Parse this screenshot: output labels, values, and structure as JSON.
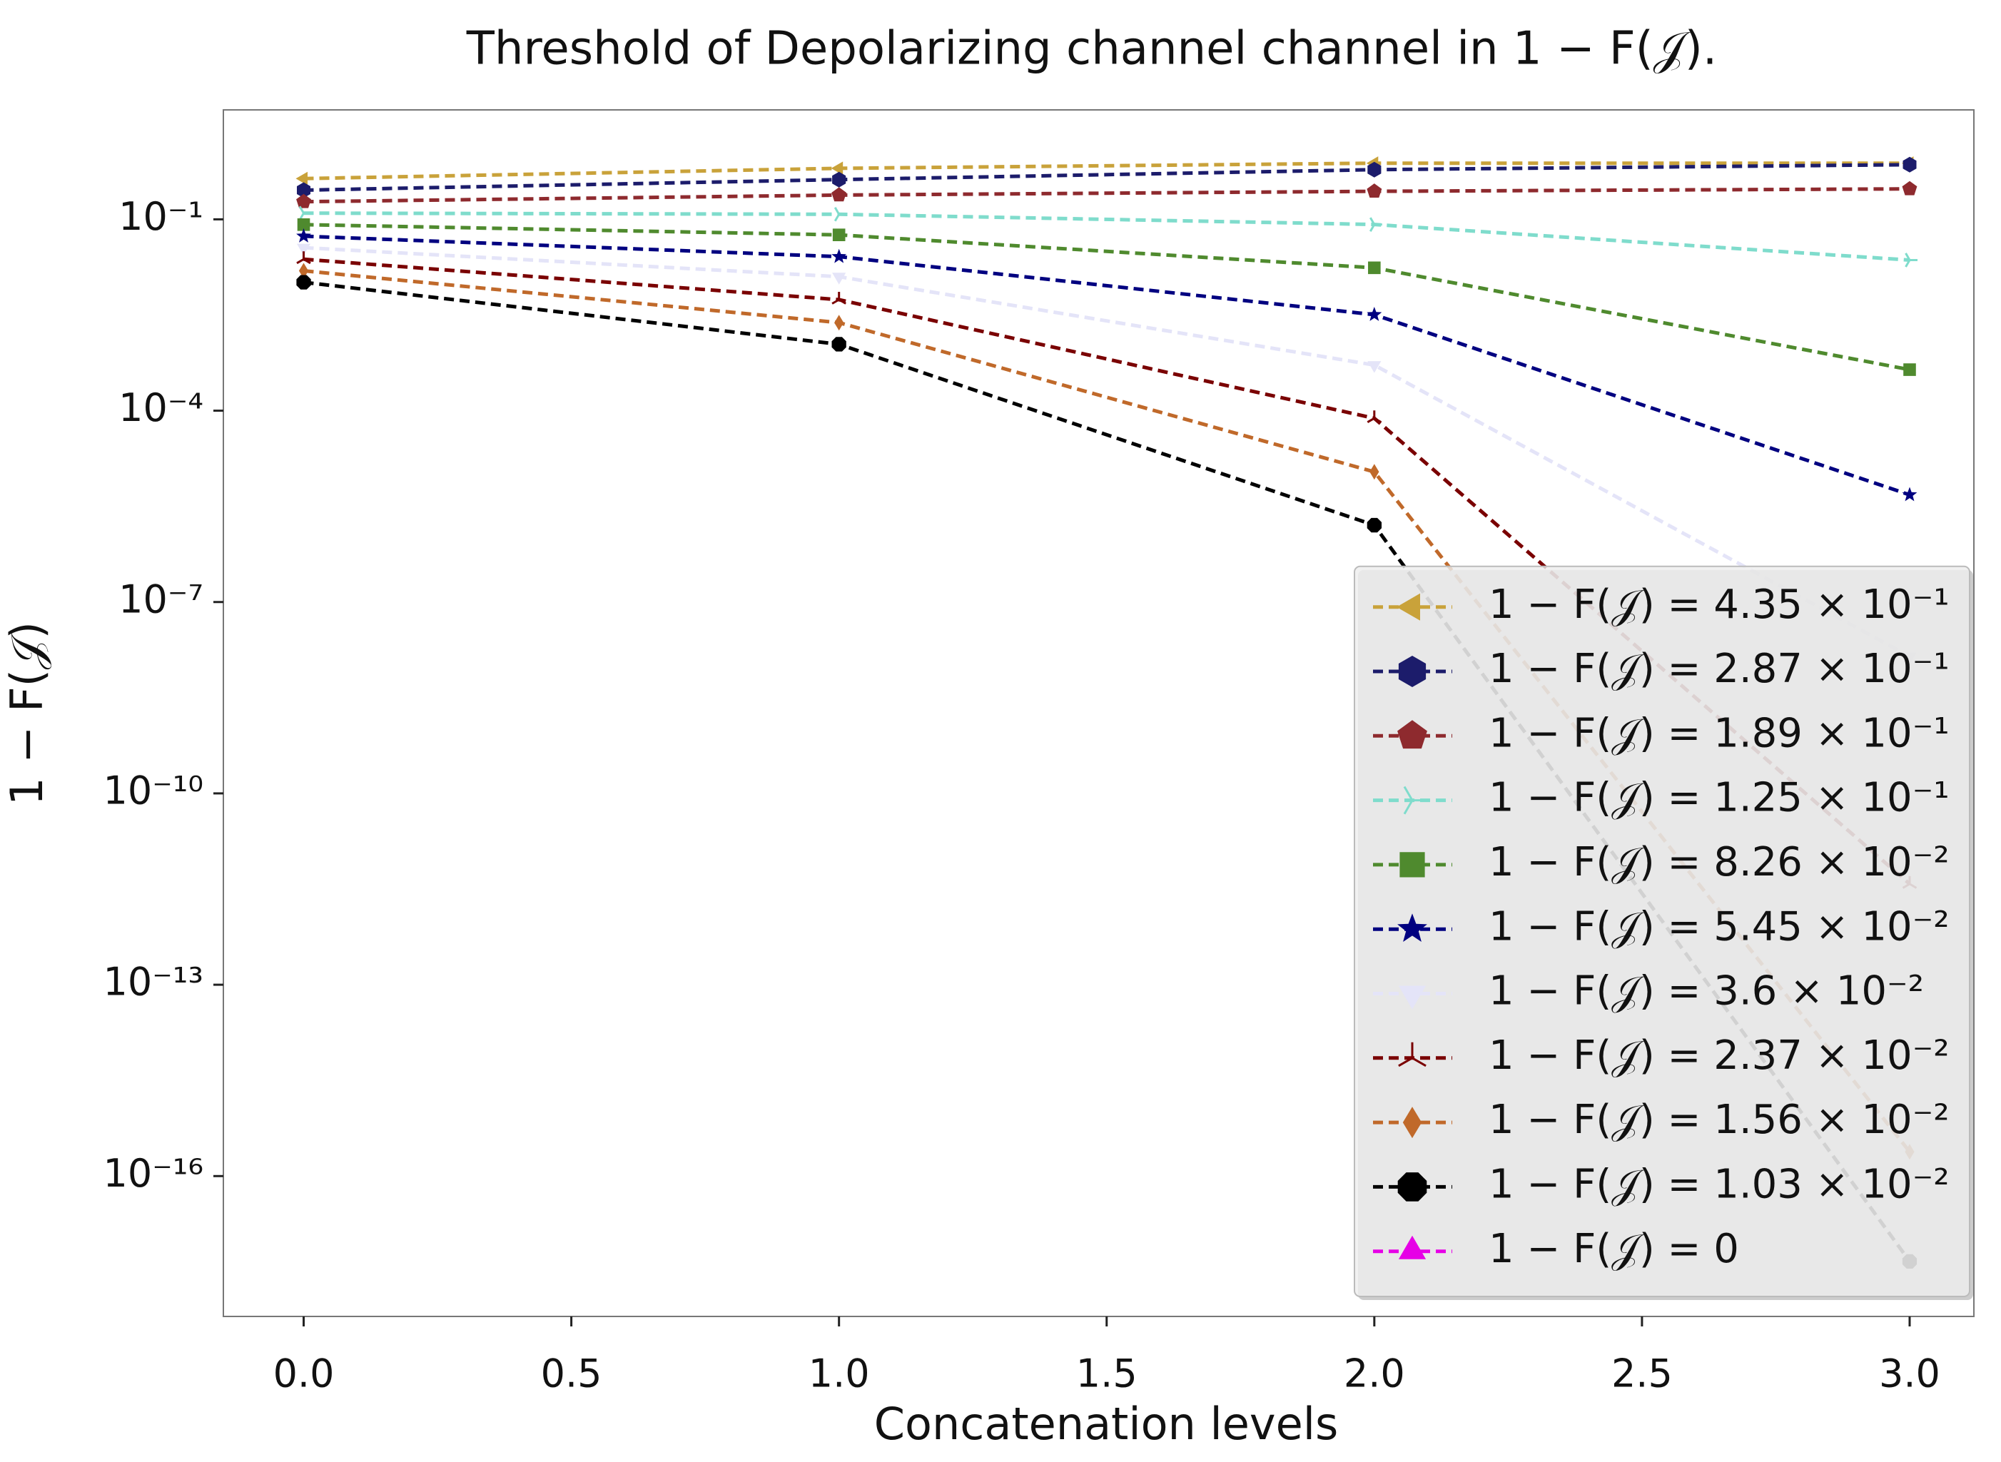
{
  "chart_data": {
    "type": "line",
    "title": "Threshold of Depolarizing channel channel in 1 − F(𝒥).",
    "x_label": "Concatenation levels",
    "y_label": "1 − F(𝒥)",
    "x": [
      0,
      1,
      2,
      3
    ],
    "xlim": [
      -0.15,
      3.12
    ],
    "xticks": [
      {
        "value": 0,
        "label": "0.0"
      },
      {
        "value": 0.5,
        "label": "0.5"
      },
      {
        "value": 1,
        "label": "1.0"
      },
      {
        "value": 1.5,
        "label": "1.5"
      },
      {
        "value": 2,
        "label": "2.0"
      },
      {
        "value": 2.5,
        "label": "2.5"
      },
      {
        "value": 3,
        "label": "3.0"
      }
    ],
    "y_scale": "log",
    "ylim": [
      6.3e-19,
      5.2
    ],
    "yticks": [
      {
        "value": 0.1,
        "label": "10⁻¹"
      },
      {
        "value": 0.0001,
        "label": "10⁻⁴"
      },
      {
        "value": 1e-07,
        "label": "10⁻⁷"
      },
      {
        "value": 1e-10,
        "label": "10⁻¹⁰"
      },
      {
        "value": 1e-13,
        "label": "10⁻¹³"
      },
      {
        "value": 1e-16,
        "label": "10⁻¹⁶"
      }
    ],
    "grid": false,
    "legend_position": "lower right",
    "series": [
      {
        "name": "1 − F(𝒥) = 4.35 × 10⁻¹",
        "color": "#c9a23a",
        "marker": "triangle-left",
        "values": [
          0.435,
          0.63,
          0.76,
          0.76
        ]
      },
      {
        "name": "1 − F(𝒥) = 2.87 × 10⁻¹",
        "color": "#1c1c6b",
        "marker": "hexagon",
        "values": [
          0.287,
          0.42,
          0.6,
          0.72
        ]
      },
      {
        "name": "1 − F(𝒥) = 1.89 × 10⁻¹",
        "color": "#8e2a2e",
        "marker": "pentagon",
        "values": [
          0.189,
          0.24,
          0.275,
          0.3
        ]
      },
      {
        "name": "1 − F(𝒥) = 1.25 × 10⁻¹",
        "color": "#7fdccc",
        "marker": "tri-left",
        "values": [
          0.125,
          0.12,
          0.083,
          0.023
        ]
      },
      {
        "name": "1 − F(𝒥) = 8.26 × 10⁻²",
        "color": "#4f8a2e",
        "marker": "square",
        "values": [
          0.0826,
          0.057,
          0.0174,
          0.00044
        ]
      },
      {
        "name": "1 − F(𝒥) = 5.45 × 10⁻²",
        "color": "#000080",
        "marker": "star",
        "values": [
          0.0545,
          0.026,
          0.0032,
          4.8e-06
        ]
      },
      {
        "name": "1 − F(𝒥) = 3.6 × 10⁻²",
        "color": "#e4e4f8",
        "marker": "triangle-down",
        "values": [
          0.036,
          0.0126,
          0.00052,
          1.4e-08
        ]
      },
      {
        "name": "1 − F(𝒥) = 2.37 × 10⁻²",
        "color": "#7a0000",
        "marker": "tri-down",
        "values": [
          0.0237,
          0.0055,
          7.6e-05,
          3.8e-12
        ]
      },
      {
        "name": "1 − F(𝒥) = 1.56 × 10⁻²",
        "color": "#c0692a",
        "marker": "thin-diamond",
        "values": [
          0.0156,
          0.0024,
          1.1e-05,
          2.4e-16
        ]
      },
      {
        "name": "1 − F(𝒥) = 1.03 × 10⁻²",
        "color": "#000000",
        "marker": "octagon",
        "values": [
          0.0103,
          0.0011,
          1.6e-06,
          4.6e-18
        ]
      },
      {
        "name": "1 − F(𝒥) = 0",
        "color": "#e600e6",
        "marker": "triangle-up",
        "values": [
          null,
          null,
          null,
          null
        ]
      }
    ]
  }
}
